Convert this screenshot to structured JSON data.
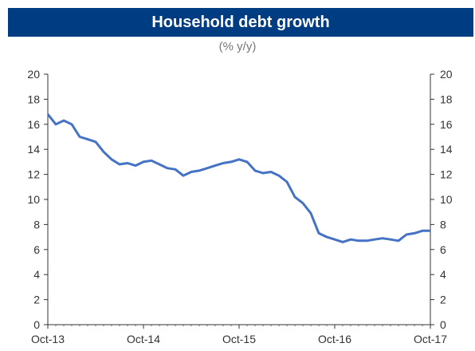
{
  "title_bar_color": "#003c82",
  "line_color": "#4472c4",
  "chart_data": {
    "type": "line",
    "title": "Household debt growth",
    "subtitle": "(% y/y)",
    "xlabel": "",
    "ylabel": "",
    "x_tick_labels": [
      "Oct-13",
      "Oct-14",
      "Oct-15",
      "Oct-16",
      "Oct-17"
    ],
    "ylim": [
      0,
      20
    ],
    "y_ticks": [
      "0",
      "2",
      "4",
      "6",
      "8",
      "10",
      "12",
      "14",
      "16",
      "18",
      "20"
    ],
    "grid": false,
    "legend": "none",
    "series": [
      {
        "x": [
          "Oct-13",
          "Nov-13",
          "Dec-13",
          "Jan-14",
          "Feb-14",
          "Mar-14",
          "Apr-14",
          "May-14",
          "Jun-14",
          "Jul-14",
          "Aug-14",
          "Sep-14",
          "Oct-14",
          "Nov-14",
          "Dec-14",
          "Jan-15",
          "Feb-15",
          "Mar-15",
          "Apr-15",
          "May-15",
          "Jun-15",
          "Jul-15",
          "Aug-15",
          "Sep-15",
          "Oct-15",
          "Nov-15",
          "Dec-15",
          "Jan-16",
          "Feb-16",
          "Mar-16",
          "Apr-16",
          "May-16",
          "Jun-16",
          "Jul-16",
          "Aug-16",
          "Sep-16",
          "Oct-16",
          "Nov-16",
          "Dec-16",
          "Jan-17",
          "Feb-17",
          "Mar-17",
          "Apr-17",
          "May-17",
          "Jun-17",
          "Jul-17",
          "Aug-17",
          "Sep-17",
          "Oct-17"
        ],
        "values": [
          16.8,
          16.0,
          16.3,
          16.0,
          15.0,
          14.8,
          14.6,
          13.8,
          13.2,
          12.8,
          12.9,
          12.7,
          13.0,
          13.1,
          12.8,
          12.5,
          12.4,
          11.9,
          12.2,
          12.3,
          12.5,
          12.7,
          12.9,
          13.0,
          13.2,
          13.0,
          12.3,
          12.1,
          12.2,
          11.9,
          11.4,
          10.2,
          9.7,
          8.9,
          7.3,
          7.0,
          6.8,
          6.6,
          6.8,
          6.7,
          6.7,
          6.8,
          6.9,
          6.8,
          6.7,
          7.2,
          7.3,
          7.5,
          7.5
        ]
      }
    ]
  }
}
